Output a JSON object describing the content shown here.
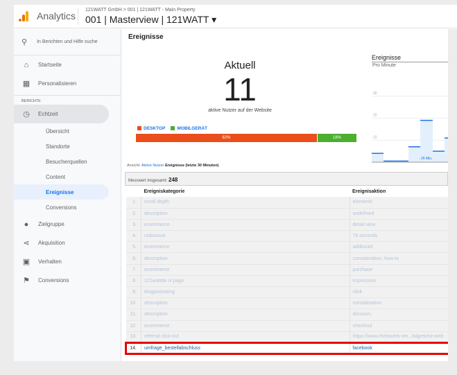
{
  "header": {
    "brand": "Analytics",
    "breadcrumb": "121WATT GmbH > 001 | 121WATT - Main Property",
    "view": "001 | Masterview | 121WATT ▾"
  },
  "sidebar": {
    "search_placeholder": "In Berichten und Hilfe suche",
    "top": [
      {
        "label": "Startseite",
        "icon": "home-icon"
      },
      {
        "label": "Personalisieren",
        "icon": "dashboard-add-icon"
      }
    ],
    "section": "BERICHTE",
    "realtime": {
      "label": "Echtzeit",
      "icon": "clock-icon",
      "items": [
        "Übersicht",
        "Standorte",
        "Besucherquellen",
        "Content",
        "Ereignisse",
        "Conversions"
      ],
      "selected": "Ereignisse"
    },
    "reports": [
      {
        "label": "Zielgruppe",
        "icon": "person-icon"
      },
      {
        "label": "Akquisition",
        "icon": "acquisition-icon"
      },
      {
        "label": "Verhalten",
        "icon": "window-icon"
      },
      {
        "label": "Conversions",
        "icon": "flag-icon"
      }
    ]
  },
  "main": {
    "title": "Ereignisse",
    "current_label": "Aktuell",
    "current_value": "11",
    "current_sub": "aktive Nutzer auf der Website",
    "devices": [
      {
        "label": "DESKTOP",
        "percent": 82,
        "text": "82%",
        "color": "#e94e1b"
      },
      {
        "label": "MOBILGERÄT",
        "percent": 18,
        "text": "18%",
        "color": "#4caf2e"
      }
    ],
    "chart": {
      "title": "Ereignisse",
      "subtitle": "Pro Minute",
      "type": "bar",
      "y_ticks": [
        "10",
        "20",
        "30"
      ],
      "ylim": [
        0,
        40
      ],
      "values": [
        4,
        0.5,
        7,
        19,
        5,
        11
      ],
      "x_annotation": "- 26 Min.",
      "color": "#1a73e8"
    },
    "view_label": "Ansicht:",
    "view_link": "Aktive Nutzer",
    "view_current": "Ereignisse (letzte 30 Minuten)",
    "total_label": "Messwert insgesamt:",
    "total_value": "248",
    "columns": [
      "Ereigniskategorie",
      "Ereignisaktion"
    ],
    "rows": [
      [
        "1.",
        "scroll depth",
        "elements"
      ],
      [
        "2.",
        "description",
        "undefined"
      ],
      [
        "3.",
        "ecommerce",
        "detail view"
      ],
      [
        "4.",
        "nobounce",
        "75 seconds"
      ],
      [
        "5.",
        "ecommerce",
        "addtocart"
      ],
      [
        "6.",
        "description",
        "consideration, how-to"
      ],
      [
        "7.",
        "ecommerce",
        "purchase"
      ],
      [
        "8.",
        "121wattde nl page",
        "impression"
      ],
      [
        "9.",
        "blogpostrating",
        "click"
      ],
      [
        "10.",
        "description",
        "consideration"
      ],
      [
        "11.",
        "description",
        "decision,"
      ],
      [
        "12.",
        "ecommerce",
        "checkout"
      ],
      [
        "13.",
        "referral click-out",
        "https://www.rheinwerk-ver...folgreiche-web"
      ],
      [
        "14.",
        "umfrage_bestellabschluss",
        "facebook"
      ]
    ],
    "highlighted_row": 14
  }
}
